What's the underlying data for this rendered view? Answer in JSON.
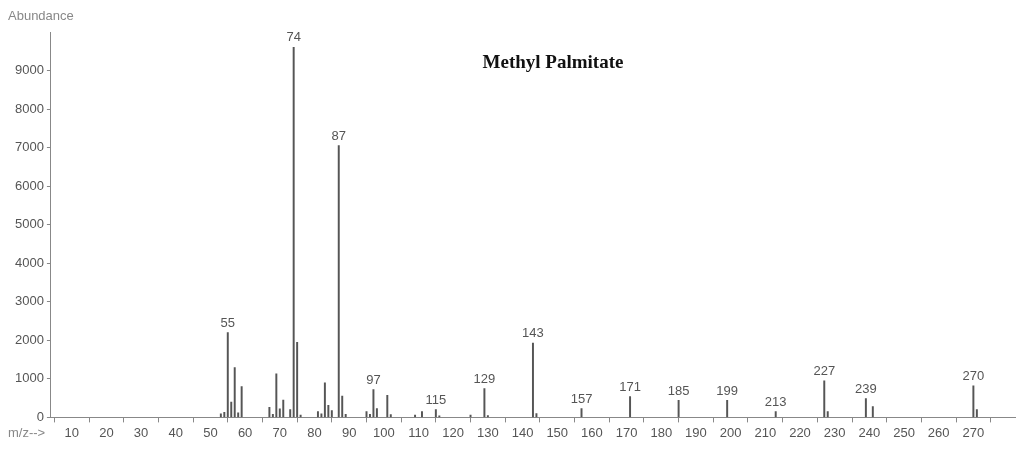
{
  "chart_data": {
    "type": "bar",
    "title": "Methyl Palmitate",
    "xlabel": "m/z-->",
    "ylabel": "Abundance",
    "color": "#555555",
    "x": [
      53,
      54,
      55,
      56,
      57,
      58,
      59,
      67,
      68,
      69,
      70,
      71,
      73,
      74,
      75,
      76,
      81,
      82,
      83,
      84,
      85,
      87,
      88,
      89,
      95,
      96,
      97,
      98,
      101,
      102,
      109,
      111,
      115,
      116,
      125,
      129,
      130,
      143,
      144,
      157,
      171,
      185,
      199,
      213,
      227,
      228,
      239,
      241,
      270,
      271
    ],
    "values": [
      90,
      130,
      2200,
      400,
      1290,
      120,
      800,
      260,
      80,
      1130,
      220,
      450,
      200,
      9600,
      1950,
      60,
      150,
      90,
      900,
      310,
      180,
      7050,
      550,
      80,
      150,
      80,
      720,
      230,
      570,
      70,
      60,
      150,
      200,
      40,
      60,
      750,
      50,
      1930,
      100,
      230,
      540,
      440,
      440,
      150,
      950,
      150,
      490,
      280,
      820,
      200
    ],
    "xlim": [
      4,
      282
    ],
    "xticks": [
      10,
      20,
      30,
      40,
      50,
      60,
      70,
      80,
      90,
      100,
      110,
      120,
      130,
      140,
      150,
      160,
      170,
      180,
      190,
      200,
      210,
      220,
      230,
      240,
      250,
      260,
      270
    ],
    "ylim": [
      0,
      10000
    ],
    "yticks": [
      0,
      1000,
      2000,
      3000,
      4000,
      5000,
      6000,
      7000,
      8000,
      9000
    ],
    "grid": false,
    "legend": false,
    "annotations": [
      {
        "text": "55",
        "x": 55,
        "y": 2200
      },
      {
        "text": "74",
        "x": 74,
        "y": 9600
      },
      {
        "text": "87",
        "x": 87,
        "y": 7050
      },
      {
        "text": "97",
        "x": 97,
        "y": 720
      },
      {
        "text": "115",
        "x": 115,
        "y": 200
      },
      {
        "text": "129",
        "x": 129,
        "y": 750
      },
      {
        "text": "143",
        "x": 143,
        "y": 1930
      },
      {
        "text": "157",
        "x": 157,
        "y": 230
      },
      {
        "text": "171",
        "x": 171,
        "y": 540
      },
      {
        "text": "185",
        "x": 185,
        "y": 440
      },
      {
        "text": "199",
        "x": 199,
        "y": 440
      },
      {
        "text": "213",
        "x": 213,
        "y": 150
      },
      {
        "text": "227",
        "x": 227,
        "y": 950
      },
      {
        "text": "239",
        "x": 239,
        "y": 490
      },
      {
        "text": "270",
        "x": 270,
        "y": 820
      }
    ]
  }
}
